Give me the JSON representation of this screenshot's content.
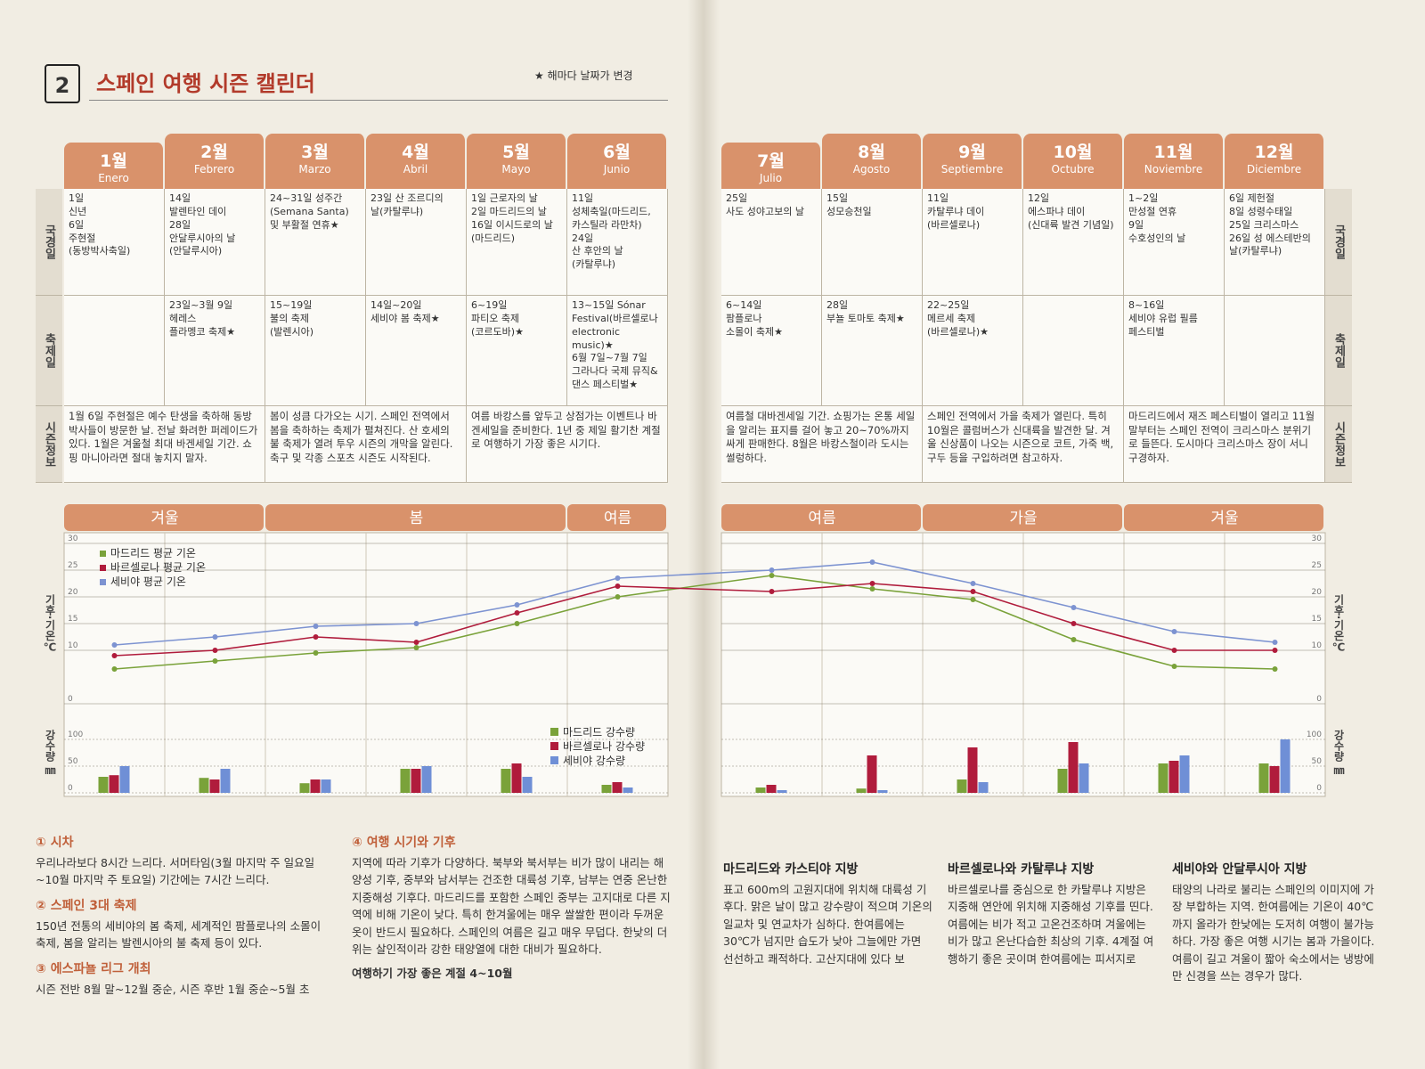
{
  "header": {
    "number": "2",
    "title": "스페인 여행 시즌 캘린더",
    "note": "★ 해마다 날짜가 변경"
  },
  "calendar": {
    "row_labels": [
      "국경일",
      "축제일",
      "시즌정보"
    ],
    "months": [
      {
        "name": "1월",
        "spanish": "Enero",
        "holidays": "1일\n신년\n6일\n주현절\n(동방박사축일)",
        "festivals": null
      },
      {
        "name": "2월",
        "spanish": "Febrero",
        "holidays": "14일\n발렌타인 데이\n28일\n안달루시아의 날\n(안달루시아)",
        "festivals": "23일~3월 9일\n헤레스\n플라멩코 축제★"
      },
      {
        "name": "3월",
        "spanish": "Marzo",
        "holidays": "24~31일 성주간\n(Semana Santa)\n및 부활절 연휴★",
        "festivals": "15~19일\n불의 축제\n(발렌시아)"
      },
      {
        "name": "4월",
        "spanish": "Abril",
        "holidays": "23일 산 조르디의\n날(카탈루냐)",
        "festivals": "14일~20일\n세비야 봄 축제★"
      },
      {
        "name": "5월",
        "spanish": "Mayo",
        "holidays": "1일 근로자의 날\n2일 마드리드의 날\n16일 이시드로의 날\n(마드리드)",
        "festivals": "6~19일\n파티오 축제\n(코르도바)★"
      },
      {
        "name": "6월",
        "spanish": "Junio",
        "holidays": "11일\n성체축일(마드리드,\n카스틸라 라만차)\n24일\n산 후안의 날\n(카탈루냐)",
        "festivals": "13~15일 Sónar Festival(바르셀로나 electronic music)★\n6월 7일~7월 7일\n그라나다 국제 뮤직&댄스 페스티벌★"
      },
      {
        "name": "7월",
        "spanish": "Julio",
        "holidays": "25일\n사도 성야고보의 날",
        "festivals": "6~14일\n팜플로나\n소몰이 축제★"
      },
      {
        "name": "8월",
        "spanish": "Agosto",
        "holidays": "15일\n성모승천일",
        "festivals": "28일\n부뇰 토마토 축제★"
      },
      {
        "name": "9월",
        "spanish": "Septiembre",
        "holidays": "11일\n카탈루냐 데이\n(바르셀로나)",
        "festivals": "22~25일\n메르세 축제\n(바르셀로나)★"
      },
      {
        "name": "10월",
        "spanish": "Octubre",
        "holidays": "12일\n에스파냐 데이\n(신대륙 발견 기념일)",
        "festivals": null
      },
      {
        "name": "11월",
        "spanish": "Noviembre",
        "holidays": "1~2일\n만성절 연휴\n9일\n수호성인의 날",
        "festivals": "8~16일\n세비야 유럽 필름\n페스티벌"
      },
      {
        "name": "12월",
        "spanish": "Diciembre",
        "holidays": "6일 제헌절\n8일 성령수태일\n25일 크리스마스\n26일 성 에스테반의\n날(카탈루냐)",
        "festivals": null
      }
    ],
    "season_info": [
      "1월 6일 주현절은 예수 탄생을 축하해 동방박사들이 방문한 날. 전날 화려한 퍼레이드가 있다. 1월은 겨울철 최대 바겐세일 기간. 쇼핑 마니아라면 절대 놓치지 말자.",
      "봄이 성큼 다가오는 시기. 스페인 전역에서 봄을 축하하는 축제가 펼쳐진다. 산 호세의 불 축제가 열려 투우 시즌의 개막을 알린다. 축구 및 각종 스포츠 시즌도 시작된다.",
      "여름 바캉스를 앞두고 상점가는 이벤트나 바겐세일을 준비한다. 1년 중 제일 활기찬 계절로 여행하기 가장 좋은 시기다.",
      "여름철 대바겐세일 기간. 쇼핑가는 온통 세일을 알리는 표지를 걸어 놓고 20~70%까지 싸게 판매한다. 8월은 바캉스철이라 도시는 썰렁하다.",
      "스페인 전역에서 가을 축제가 열린다. 특히 10월은 콜럼버스가 신대륙을 발견한 달. 겨울 신상품이 나오는 시즌으로 코트, 가죽 백, 구두 등을 구입하려면 참고하자.",
      "마드리드에서 재즈 페스티벌이 열리고 11월 말부터는 스페인 전역이 크리스마스 분위기로 들뜬다. 도시마다 크리스마스 장이 서니 구경하자."
    ]
  },
  "seasons": [
    "겨울",
    "봄",
    "여름",
    "여름",
    "가을",
    "겨울"
  ],
  "chart_data": [
    {
      "type": "line",
      "ylabel": "기후·기온℃",
      "ylim": [
        0,
        30
      ],
      "yticks": [
        0,
        10,
        15,
        20,
        25,
        30
      ],
      "grid": true,
      "series": [
        {
          "name": "마드리드 평균 기온",
          "color": "#7aa23a",
          "values": [
            6.5,
            8,
            9.5,
            10.5,
            15,
            20,
            24,
            21.5,
            19.5,
            12,
            7,
            6.5
          ]
        },
        {
          "name": "바르셀로나 평균 기온",
          "color": "#b01c3c",
          "values": [
            9,
            10,
            12.5,
            11.5,
            17,
            22,
            21,
            22.5,
            21,
            15,
            10,
            10
          ]
        },
        {
          "name": "세비야 평균 기온",
          "color": "#7d93d1",
          "values": [
            11,
            12.5,
            14.5,
            15,
            18.5,
            23.5,
            25,
            26.5,
            22.5,
            18,
            13.5,
            11.5
          ]
        }
      ]
    },
    {
      "type": "bar",
      "ylabel": "강수량 ㎜",
      "ylim": [
        0,
        150
      ],
      "yticks": [
        0,
        50,
        100
      ],
      "grid": true,
      "series": [
        {
          "name": "마드리드 강수량",
          "color": "#7aa23a",
          "values": [
            30,
            28,
            18,
            45,
            45,
            15,
            10,
            8,
            25,
            45,
            55,
            55
          ]
        },
        {
          "name": "바르셀로나 강수량",
          "color": "#b01c3c",
          "values": [
            33,
            25,
            25,
            45,
            55,
            20,
            15,
            70,
            85,
            95,
            60,
            50
          ]
        },
        {
          "name": "세비야 강수량",
          "color": "#6f8fd6",
          "values": [
            50,
            45,
            25,
            50,
            30,
            10,
            5,
            5,
            20,
            55,
            70,
            100
          ]
        }
      ]
    }
  ],
  "notes": {
    "left": [
      {
        "heading": "① 시차",
        "body": "우리나라보다 8시간 느리다. 서머타임(3월 마지막 주 일요일~10월 마지막 주 토요일) 기간에는 7시간 느리다."
      },
      {
        "heading": "② 스페인 3대 축제",
        "body": "150년 전통의 세비야의 봄 축제, 세계적인 팜플로나의 소몰이 축제, 봄을 알리는 발렌시아의 불 축제 등이 있다."
      },
      {
        "heading": "③ 에스파뇰 리그 개최",
        "body": "시즌 전반 8월 말~12월 중순, 시즌 후반 1월 중순~5월 초"
      }
    ],
    "climate": {
      "heading": "④ 여행 시기와 기후",
      "body": "지역에 따라 기후가 다양하다. 북부와 북서부는 비가 많이 내리는 해양성 기후, 중부와 남서부는 건조한 대륙성 기후, 남부는 연중 온난한 지중해성 기후다. 마드리드를 포함한 스페인 중부는 고지대로 다른 지역에 비해 기온이 낮다. 특히 한겨울에는 매우 쌀쌀한 편이라 두꺼운 옷이 반드시 필요하다. 스페인의 여름은 길고 매우 무덥다. 한낮의 더위는 살인적이라 강한 태양열에 대한 대비가 필요하다.",
      "best": "여행하기 가장 좋은 계절 4~10월"
    },
    "regions": [
      {
        "heading": "마드리드와 카스티야 지방",
        "body": "표고 600m의 고원지대에 위치해 대륙성 기후다. 맑은 날이 많고 강수량이 적으며 기온의 일교차 및 연교차가 심하다. 한여름에는 30℃가 넘지만 습도가 낮아 그늘에만 가면 선선하고 쾌적하다. 고산지대에 있다 보"
      },
      {
        "heading": "바르셀로나와 카탈루냐 지방",
        "body": "바르셀로나를 중심으로 한 카탈루냐 지방은 지중해 연안에 위치해 지중해성 기후를 띤다. 여름에는 비가 적고 고온건조하며 겨울에는 비가 많고 온난다습한 최상의 기후. 4계절 여행하기 좋은 곳이며 한여름에는 피서지로"
      },
      {
        "heading": "세비야와 안달루시아 지방",
        "body": "태양의 나라로 불리는 스페인의 이미지에 가장 부합하는 지역. 한여름에는 기온이 40℃까지 올라가 한낮에는 도저히 여행이 불가능하다. 가장 좋은 여행 시기는 봄과 가을이다. 여름이 길고 겨울이 짧아 숙소에서는 냉방에만 신경을 쓰는 경우가 많다."
      }
    ]
  }
}
